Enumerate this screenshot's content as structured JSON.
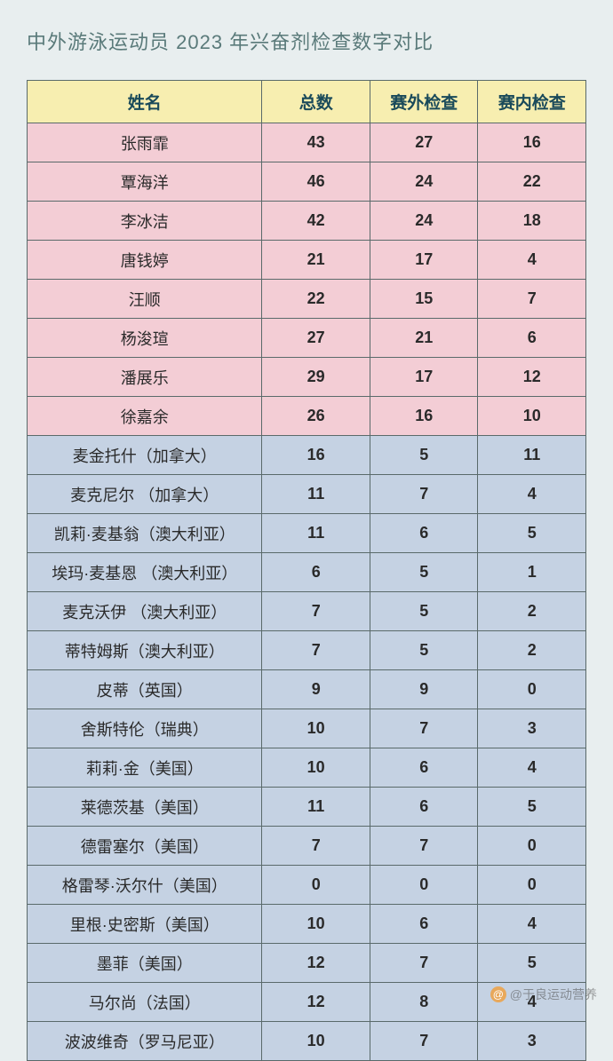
{
  "title": "中外游泳运动员 2023 年兴奋剂检查数字对比",
  "columns": [
    "姓名",
    "总数",
    "赛外检查",
    "赛内检查"
  ],
  "groups": [
    {
      "class": "group-a",
      "bg_color": "#f3cdd5",
      "rows": [
        {
          "name": "张雨霏",
          "total": 43,
          "out": 27,
          "in": 16
        },
        {
          "name": "覃海洋",
          "total": 46,
          "out": 24,
          "in": 22
        },
        {
          "name": "李冰洁",
          "total": 42,
          "out": 24,
          "in": 18
        },
        {
          "name": "唐钱婷",
          "total": 21,
          "out": 17,
          "in": 4
        },
        {
          "name": "汪顺",
          "total": 22,
          "out": 15,
          "in": 7
        },
        {
          "name": "杨浚瑄",
          "total": 27,
          "out": 21,
          "in": 6
        },
        {
          "name": "潘展乐",
          "total": 29,
          "out": 17,
          "in": 12
        },
        {
          "name": "徐嘉余",
          "total": 26,
          "out": 16,
          "in": 10
        }
      ]
    },
    {
      "class": "group-b",
      "bg_color": "#c5d2e3",
      "rows": [
        {
          "name": "麦金托什（加拿大）",
          "total": 16,
          "out": 5,
          "in": 11
        },
        {
          "name": "麦克尼尔 （加拿大）",
          "total": 11,
          "out": 7,
          "in": 4
        },
        {
          "name": "凯莉·麦基翁（澳大利亚）",
          "total": 11,
          "out": 6,
          "in": 5
        },
        {
          "name": "埃玛·麦基恩 （澳大利亚）",
          "total": 6,
          "out": 5,
          "in": 1
        },
        {
          "name": "麦克沃伊 （澳大利亚）",
          "total": 7,
          "out": 5,
          "in": 2
        },
        {
          "name": "蒂特姆斯（澳大利亚）",
          "total": 7,
          "out": 5,
          "in": 2
        },
        {
          "name": "皮蒂（英国）",
          "total": 9,
          "out": 9,
          "in": 0
        },
        {
          "name": "舍斯特伦（瑞典）",
          "total": 10,
          "out": 7,
          "in": 3
        },
        {
          "name": "莉莉·金（美国）",
          "total": 10,
          "out": 6,
          "in": 4
        },
        {
          "name": "莱德茨基（美国）",
          "total": 11,
          "out": 6,
          "in": 5
        },
        {
          "name": "德雷塞尔（美国）",
          "total": 7,
          "out": 7,
          "in": 0
        },
        {
          "name": "格雷琴·沃尔什（美国）",
          "total": 0,
          "out": 0,
          "in": 0
        },
        {
          "name": "里根·史密斯（美国）",
          "total": 10,
          "out": 6,
          "in": 4
        },
        {
          "name": "墨菲（美国）",
          "total": 12,
          "out": 7,
          "in": 5
        },
        {
          "name": "马尔尚（法国）",
          "total": 12,
          "out": 8,
          "in": 4
        },
        {
          "name": "波波维奇（罗马尼亚）",
          "total": 10,
          "out": 7,
          "in": 3
        }
      ]
    }
  ],
  "header_bg": "#f7eeb0",
  "page_bg": "#e8eeef",
  "border_color": "#5a6a6a",
  "watermark": "@于良运动营养"
}
